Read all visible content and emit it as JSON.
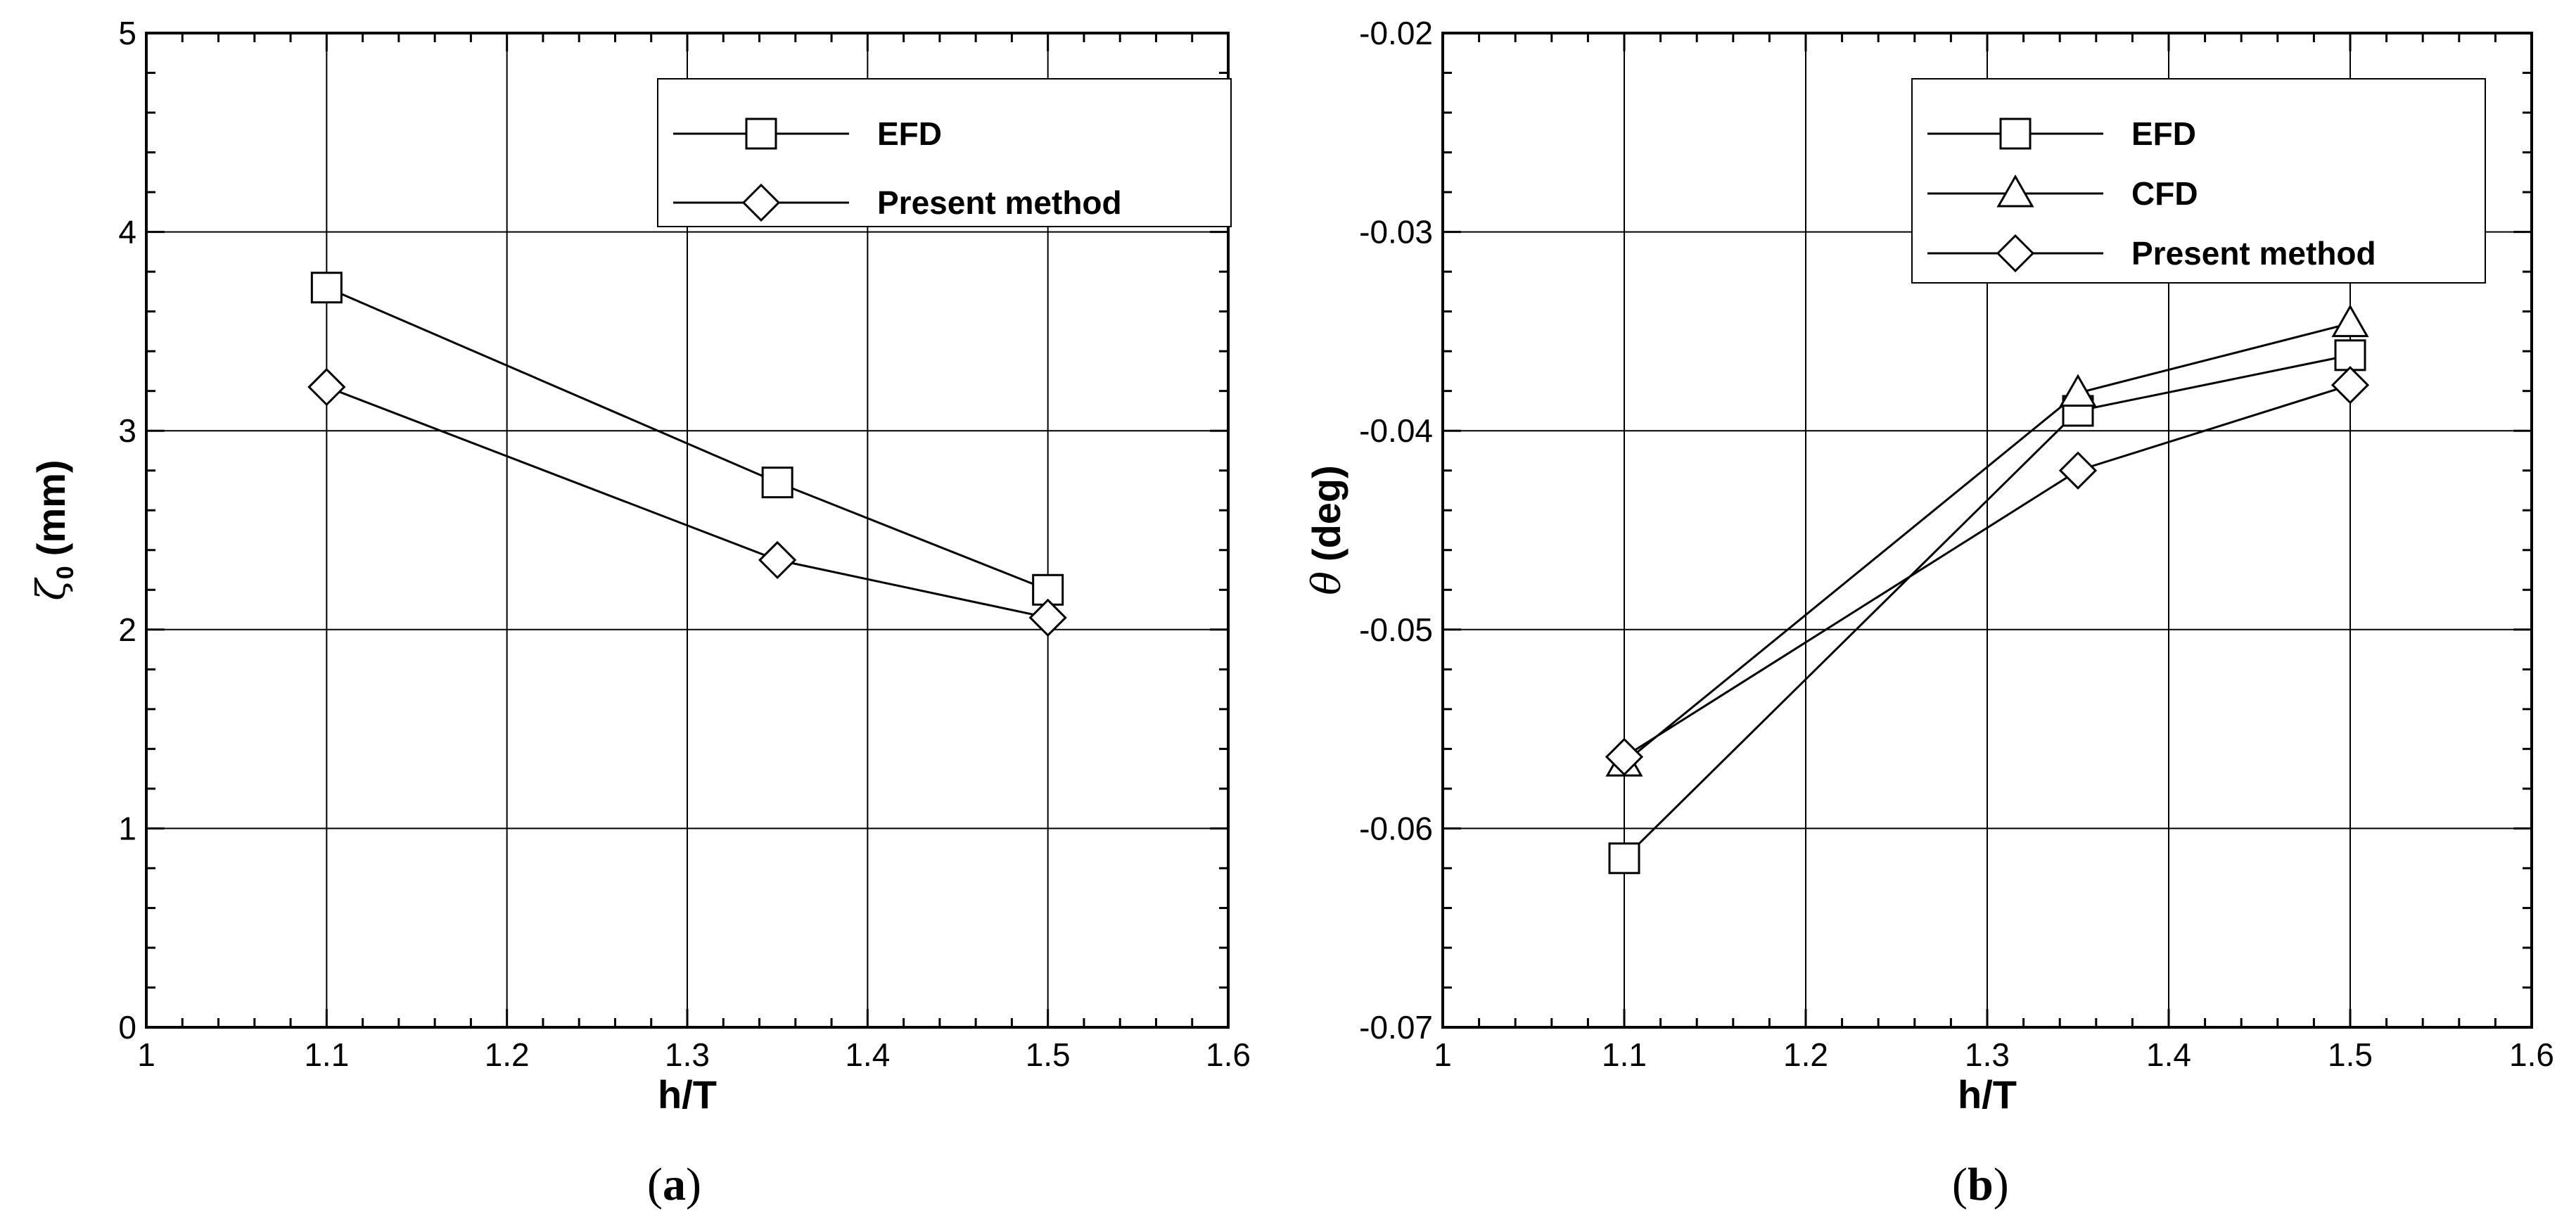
{
  "chart_data": [
    {
      "type": "line",
      "panel_label": "a",
      "xlabel": "h/T",
      "ylabel_symbol": "ζ",
      "ylabel_subscript": "0",
      "ylabel_unit": "(mm)",
      "xlim": [
        1,
        1.6
      ],
      "ylim": [
        0,
        5
      ],
      "x_ticks": [
        1,
        1.1,
        1.2,
        1.3,
        1.4,
        1.5,
        1.6
      ],
      "x_tick_labels": [
        "1",
        "1.1",
        "1.2",
        "1.3",
        "1.4",
        "1.5",
        "1.6"
      ],
      "y_ticks": [
        0,
        1,
        2,
        3,
        4,
        5
      ],
      "y_tick_labels": [
        "0",
        "1",
        "2",
        "3",
        "4",
        "5"
      ],
      "grid": true,
      "legend_position": "top-right",
      "series": [
        {
          "name": "EFD",
          "marker": "square",
          "x": [
            1.1,
            1.35,
            1.5
          ],
          "y": [
            3.72,
            2.74,
            2.2
          ]
        },
        {
          "name": "Present method",
          "marker": "diamond",
          "x": [
            1.1,
            1.35,
            1.5
          ],
          "y": [
            3.22,
            2.35,
            2.06
          ]
        }
      ]
    },
    {
      "type": "line",
      "panel_label": "b",
      "xlabel": "h/T",
      "ylabel_symbol": "θ",
      "ylabel_subscript": "",
      "ylabel_unit": "(deg)",
      "xlim": [
        1,
        1.6
      ],
      "ylim": [
        -0.07,
        -0.02
      ],
      "x_ticks": [
        1,
        1.1,
        1.2,
        1.3,
        1.4,
        1.5,
        1.6
      ],
      "x_tick_labels": [
        "1",
        "1.1",
        "1.2",
        "1.3",
        "1.4",
        "1.5",
        "1.6"
      ],
      "y_ticks": [
        -0.07,
        -0.06,
        -0.05,
        -0.04,
        -0.03,
        -0.02
      ],
      "y_tick_labels": [
        "-0.07",
        "-0.06",
        "-0.05",
        "-0.04",
        "-0.03",
        "-0.02"
      ],
      "grid": true,
      "legend_position": "top-right",
      "series": [
        {
          "name": "EFD",
          "marker": "square",
          "x": [
            1.1,
            1.35,
            1.5
          ],
          "y": [
            -0.0615,
            -0.039,
            -0.0362
          ]
        },
        {
          "name": "CFD",
          "marker": "triangle",
          "x": [
            1.1,
            1.35,
            1.5
          ],
          "y": [
            -0.0567,
            -0.0381,
            -0.0346
          ]
        },
        {
          "name": "Present method",
          "marker": "diamond",
          "x": [
            1.1,
            1.35,
            1.5
          ],
          "y": [
            -0.0564,
            -0.042,
            -0.0377
          ]
        }
      ]
    }
  ]
}
